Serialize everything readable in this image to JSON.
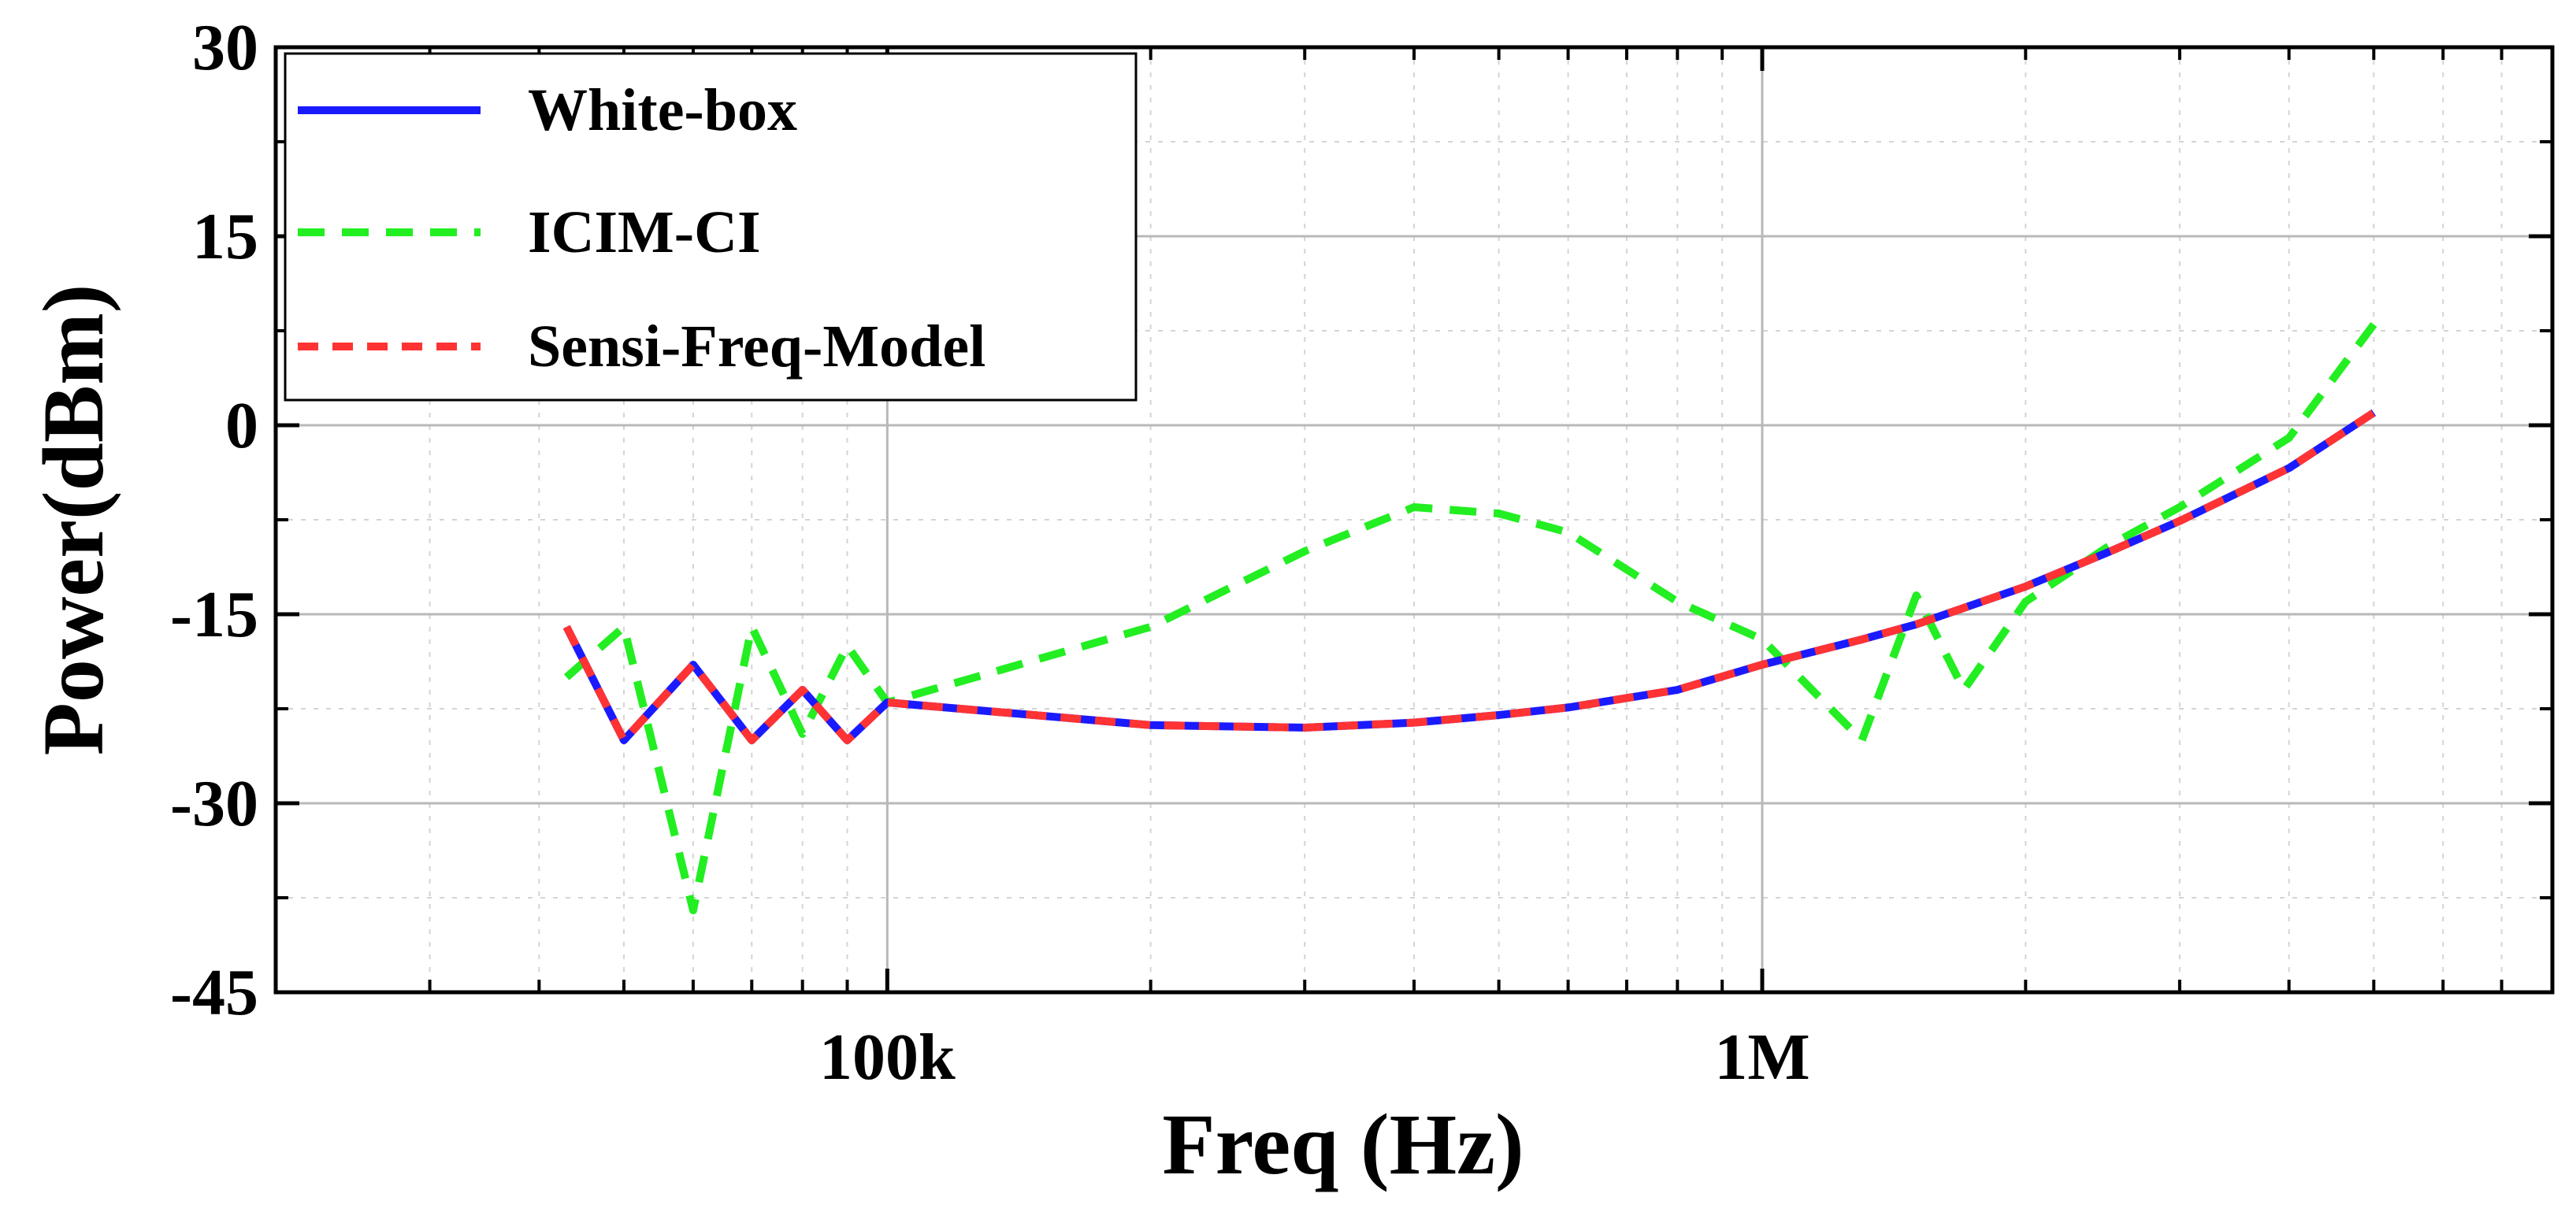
{
  "chart_data": {
    "type": "line",
    "xscale": "log",
    "xlabel": "Freq (Hz)",
    "ylabel": "Power(dBm)",
    "xlim": [
      20000,
      8000000
    ],
    "ylim": [
      -45,
      30
    ],
    "yticks": [
      -45,
      -30,
      -15,
      0,
      15,
      30
    ],
    "yticklabels": [
      "-45",
      "-30",
      "-15",
      "0",
      "15",
      "30"
    ],
    "xticks": [
      100000,
      1000000
    ],
    "xticklabels": [
      "100k",
      "1M"
    ],
    "grid": true,
    "legend_position": "top-left",
    "series": [
      {
        "name": "White-box",
        "color": "#1a1aff",
        "dash": "solid",
        "x": [
          43000,
          50000,
          60000,
          70000,
          80000,
          90000,
          100000,
          200000,
          300000,
          400000,
          500000,
          600000,
          800000,
          1000000,
          1300000,
          1500000,
          2000000,
          2500000,
          3000000,
          4000000,
          5000000
        ],
        "y": [
          -16,
          -25,
          -19,
          -25,
          -21,
          -25,
          -22,
          -23.8,
          -24,
          -23.6,
          -23,
          -22.4,
          -21,
          -19,
          -17,
          -15.8,
          -12.8,
          -10,
          -7.6,
          -3.4,
          1
        ]
      },
      {
        "name": "ICIM-CI",
        "color": "#22ee22",
        "dash": "dashed",
        "x": [
          43000,
          50000,
          60000,
          70000,
          80000,
          90000,
          100000,
          200000,
          300000,
          400000,
          500000,
          600000,
          800000,
          1000000,
          1300000,
          1500000,
          1700000,
          2000000,
          2500000,
          3000000,
          4000000,
          5000000
        ],
        "y": [
          -20,
          -16,
          -38.5,
          -16,
          -24.5,
          -17.5,
          -22,
          -16,
          -10,
          -6.5,
          -7,
          -8.5,
          -14,
          -17,
          -25,
          -13.5,
          -21,
          -14,
          -9.5,
          -6.5,
          -1,
          8
        ]
      },
      {
        "name": "Sensi-Freq-Model",
        "color": "#ff3333",
        "dash": "dashed",
        "x": [
          43000,
          50000,
          60000,
          70000,
          80000,
          90000,
          100000,
          200000,
          300000,
          400000,
          500000,
          600000,
          800000,
          1000000,
          1300000,
          1500000,
          2000000,
          2500000,
          3000000,
          4000000,
          5000000
        ],
        "y": [
          -16,
          -25,
          -19,
          -25,
          -21,
          -25,
          -22,
          -23.8,
          -24,
          -23.6,
          -23,
          -22.4,
          -21,
          -19,
          -17,
          -15.8,
          -12.8,
          -10,
          -7.6,
          -3.4,
          1
        ]
      }
    ]
  }
}
